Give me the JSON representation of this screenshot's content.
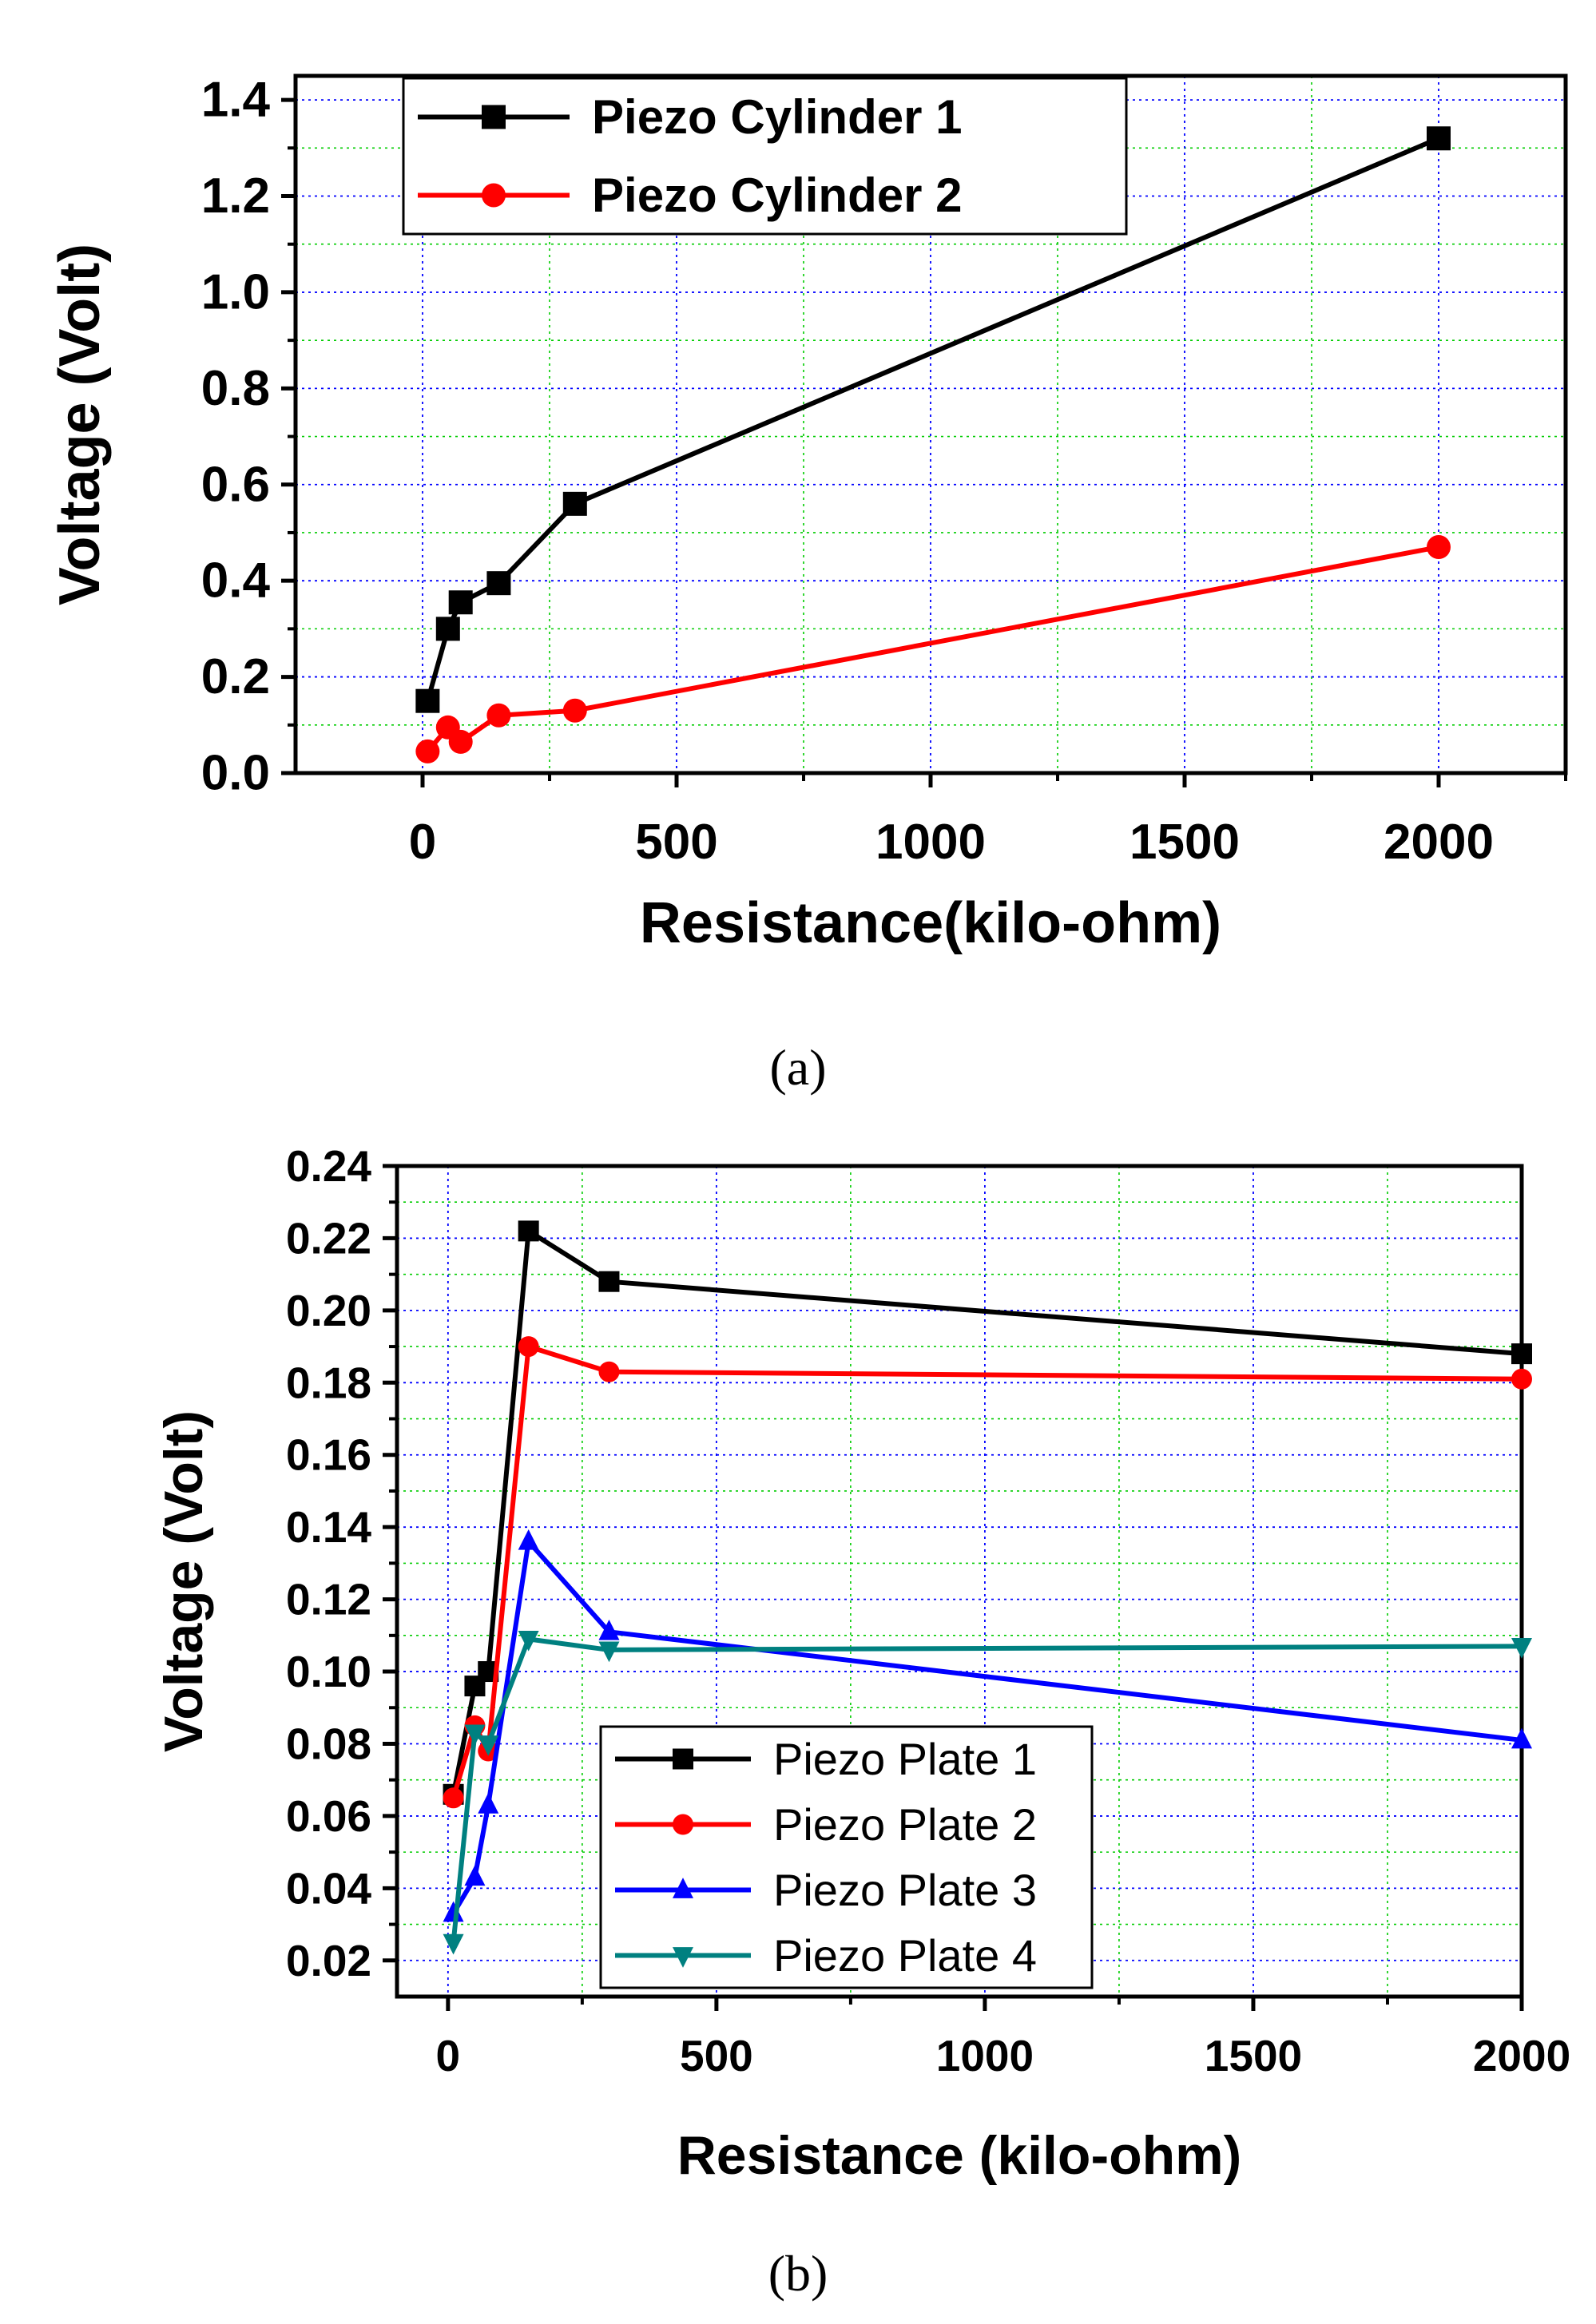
{
  "chart_data": [
    {
      "type": "line",
      "panel_label": "(a)",
      "xlabel": "Resistance(kilo-ohm)",
      "ylabel": "Voltage (Volt)",
      "xlim": [
        -250,
        2250
      ],
      "ylim": [
        0,
        1.45
      ],
      "xticks": [
        "0",
        "500",
        "1000",
        "1500",
        "2000"
      ],
      "xtick_values": [
        0,
        500,
        1000,
        1500,
        2000
      ],
      "yticks": [
        "0.0",
        "0.2",
        "0.4",
        "0.6",
        "0.8",
        "1.0",
        "1.2",
        "1.4"
      ],
      "ytick_values": [
        0,
        0.2,
        0.4,
        0.6,
        0.8,
        1.0,
        1.2,
        1.4
      ],
      "grid": true,
      "legend_position": "top-left",
      "series": [
        {
          "name": "Piezo Cylinder 1",
          "color": "#000000",
          "marker": "square",
          "x": [
            10,
            50,
            75,
            150,
            300,
            2000
          ],
          "y": [
            0.15,
            0.3,
            0.355,
            0.395,
            0.56,
            1.32
          ]
        },
        {
          "name": "Piezo Cylinder 2",
          "color": "#ff0000",
          "marker": "circle",
          "x": [
            10,
            50,
            75,
            150,
            300,
            2000
          ],
          "y": [
            0.045,
            0.095,
            0.065,
            0.12,
            0.13,
            0.47
          ]
        }
      ]
    },
    {
      "type": "line",
      "panel_label": "(b)",
      "xlabel": "Resistance (kilo-ohm)",
      "ylabel": "Voltage (Volt)",
      "xlim": [
        -95,
        2000
      ],
      "ylim": [
        0.01,
        0.24
      ],
      "xticks": [
        "0",
        "500",
        "1000",
        "1500",
        "2000"
      ],
      "xtick_values": [
        0,
        500,
        1000,
        1500,
        2000
      ],
      "yticks": [
        "0.02",
        "0.04",
        "0.06",
        "0.08",
        "0.10",
        "0.12",
        "0.14",
        "0.16",
        "0.18",
        "0.20",
        "0.22",
        "0.24"
      ],
      "ytick_values": [
        0.02,
        0.04,
        0.06,
        0.08,
        0.1,
        0.12,
        0.14,
        0.16,
        0.18,
        0.2,
        0.22,
        0.24
      ],
      "grid": true,
      "legend_position": "bottom-center",
      "series": [
        {
          "name": "Piezo Plate 1",
          "color": "#000000",
          "marker": "square",
          "x": [
            10,
            50,
            75,
            150,
            300,
            2000
          ],
          "y": [
            0.066,
            0.096,
            0.1,
            0.222,
            0.208,
            0.188
          ]
        },
        {
          "name": "Piezo Plate 2",
          "color": "#ff0000",
          "marker": "circle",
          "x": [
            10,
            50,
            75,
            150,
            300,
            2000
          ],
          "y": [
            0.065,
            0.085,
            0.078,
            0.19,
            0.183,
            0.181
          ]
        },
        {
          "name": "Piezo Plate 3",
          "color": "#0000ff",
          "marker": "triangle-up",
          "x": [
            10,
            50,
            75,
            150,
            300,
            2000
          ],
          "y": [
            0.033,
            0.043,
            0.063,
            0.136,
            0.111,
            0.081
          ]
        },
        {
          "name": "Piezo Plate 4",
          "color": "#008080",
          "marker": "triangle-down",
          "x": [
            10,
            50,
            75,
            150,
            300,
            2000
          ],
          "y": [
            0.025,
            0.083,
            0.08,
            0.109,
            0.106,
            0.107
          ]
        }
      ]
    }
  ]
}
